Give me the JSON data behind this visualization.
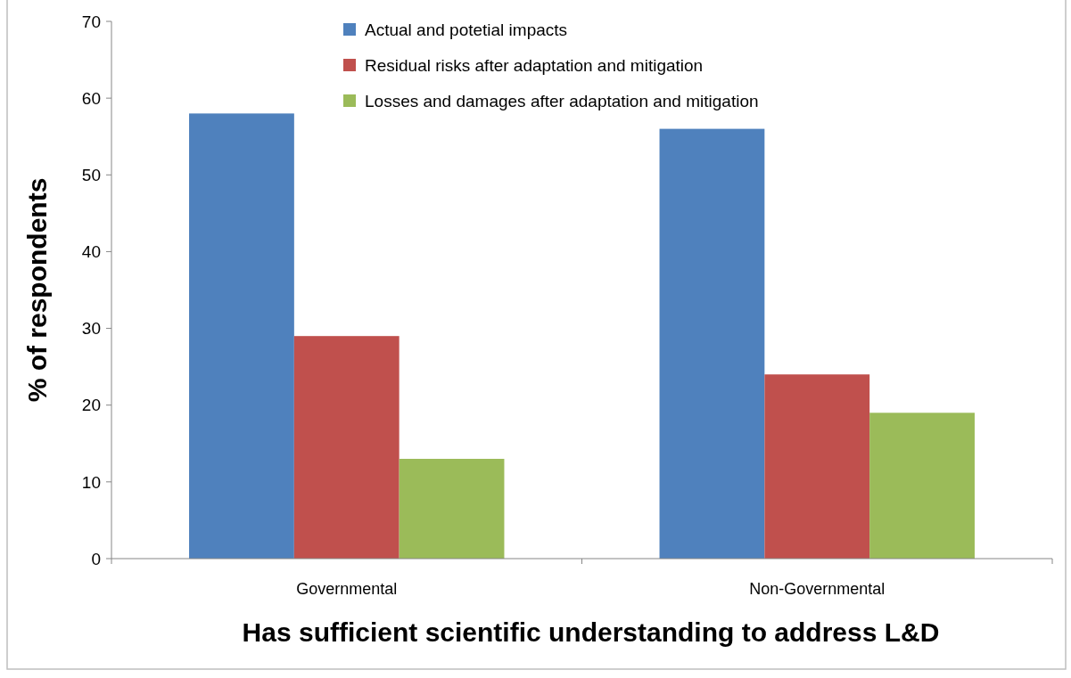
{
  "chart_data": {
    "type": "bar",
    "xlabel": "Has sufficient scientific understanding to address L&D",
    "ylabel": "% of respondents",
    "categories": [
      "Governmental",
      "Non-Governmental"
    ],
    "series": [
      {
        "name": "Actual and potetial impacts",
        "color": "#4f81bd",
        "values": [
          58,
          56
        ]
      },
      {
        "name": "Residual risks after adaptation and mitigation",
        "color": "#c0504d",
        "values": [
          29,
          24
        ]
      },
      {
        "name": "Losses and damages after adaptation and mitigation",
        "color": "#9bbb59",
        "values": [
          13,
          19
        ]
      }
    ],
    "ylim": [
      0,
      70
    ],
    "yticks": [
      0,
      10,
      20,
      30,
      40,
      50,
      60,
      70
    ],
    "grid": false,
    "legend": "top"
  }
}
